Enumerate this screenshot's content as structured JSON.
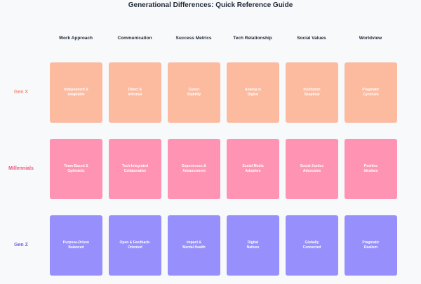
{
  "title": "Generational Differences: Quick Reference Guide",
  "columns": [
    "Work Approach",
    "Communication",
    "Success Metrics",
    "Tech Relationship",
    "Social Values",
    "Worldview"
  ],
  "rows": [
    {
      "label": "Gen X",
      "label_color": "#f0907a",
      "card_color": "#fcba9f",
      "cells": [
        "Independent &\nAdaptable",
        "Direct &\nInformal",
        "Career\nStability",
        "Analog to\nDigital",
        "Institution\nSkeptical",
        "Pragmatic\nCynicism"
      ]
    },
    {
      "label": "Millennials",
      "label_color": "#f0567f",
      "card_color": "#ff93b4",
      "cells": [
        "Team-Based &\nOptimistic",
        "Tech-Integrated\nCollaborative",
        "Experiences &\nAdvancement",
        "Social Media\nAdopters",
        "Social Justice\nAdvocates",
        "Positive\nIdealism"
      ]
    },
    {
      "label": "Gen Z",
      "label_color": "#6b63d9",
      "card_color": "#968ffc",
      "cells": [
        "Purpose-Driven\nBalanced",
        "Open & Feedback-\nOriented",
        "Impact &\nMental Health",
        "Digital\nNatives",
        "Globally\nConnected",
        "Pragmatic\nRealism"
      ]
    }
  ]
}
